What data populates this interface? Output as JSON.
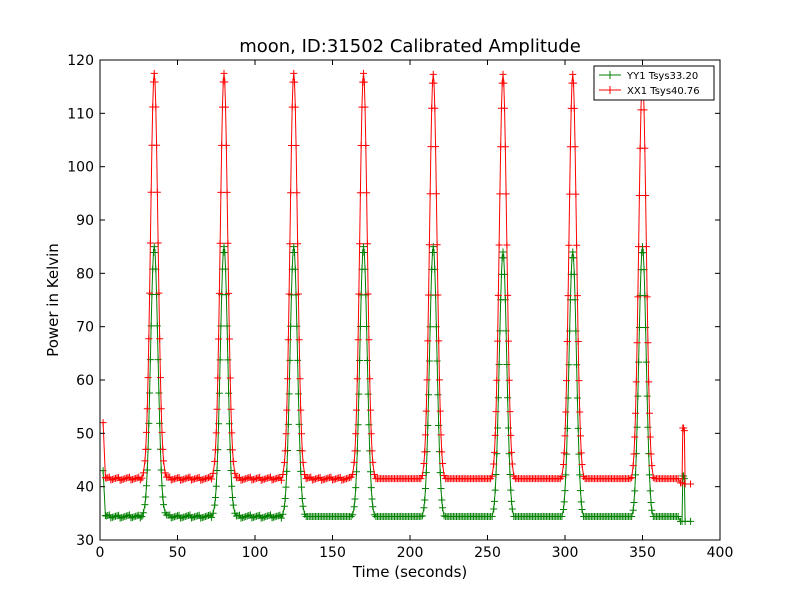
{
  "chart_data": {
    "type": "line",
    "title": "moon, ID:31502 Calibrated Amplitude",
    "xlabel": "Time (seconds)",
    "ylabel": "Power in Kelvin",
    "xlim": [
      0,
      400
    ],
    "ylim": [
      30,
      120
    ],
    "xticks": [
      0,
      50,
      100,
      150,
      200,
      250,
      300,
      350,
      400
    ],
    "yticks": [
      30,
      40,
      50,
      60,
      70,
      80,
      90,
      100,
      110,
      120
    ],
    "grid": false,
    "legend_position": "top-right",
    "marker": "plus",
    "series": [
      {
        "name": "YY1 Tsys33.20",
        "color": "#008000",
        "start": {
          "x": 2,
          "y": 43
        },
        "baselines": [
          34.4,
          34.3,
          34.1,
          34.0,
          33.8,
          33.6,
          33.5,
          33.3,
          33.5
        ],
        "peaks": [
          {
            "x": 35,
            "y": 85
          },
          {
            "x": 80,
            "y": 85
          },
          {
            "x": 125,
            "y": 85
          },
          {
            "x": 170,
            "y": 85
          },
          {
            "x": 215,
            "y": 85
          },
          {
            "x": 260,
            "y": 84
          },
          {
            "x": 305,
            "y": 84
          },
          {
            "x": 350,
            "y": 85
          }
        ],
        "end_spike": {
          "x": 376,
          "y": 42
        },
        "end": {
          "x": 381,
          "y": 33.5
        }
      },
      {
        "name": "XX1 Tsys40.76",
        "color": "#ff0000",
        "start": {
          "x": 2,
          "y": 52
        },
        "baselines": [
          41.5,
          41.4,
          41.2,
          41.2,
          41.0,
          40.9,
          40.8,
          40.6,
          40.7
        ],
        "peaks": [
          {
            "x": 35,
            "y": 117.5
          },
          {
            "x": 80,
            "y": 117.5
          },
          {
            "x": 125,
            "y": 117.5
          },
          {
            "x": 170,
            "y": 117.5
          },
          {
            "x": 215,
            "y": 117.3
          },
          {
            "x": 260,
            "y": 117.3
          },
          {
            "x": 305,
            "y": 117.3
          },
          {
            "x": 350,
            "y": 117
          }
        ],
        "end_spike": {
          "x": 376,
          "y": 51
        },
        "end": {
          "x": 381,
          "y": 40.5
        }
      }
    ]
  }
}
